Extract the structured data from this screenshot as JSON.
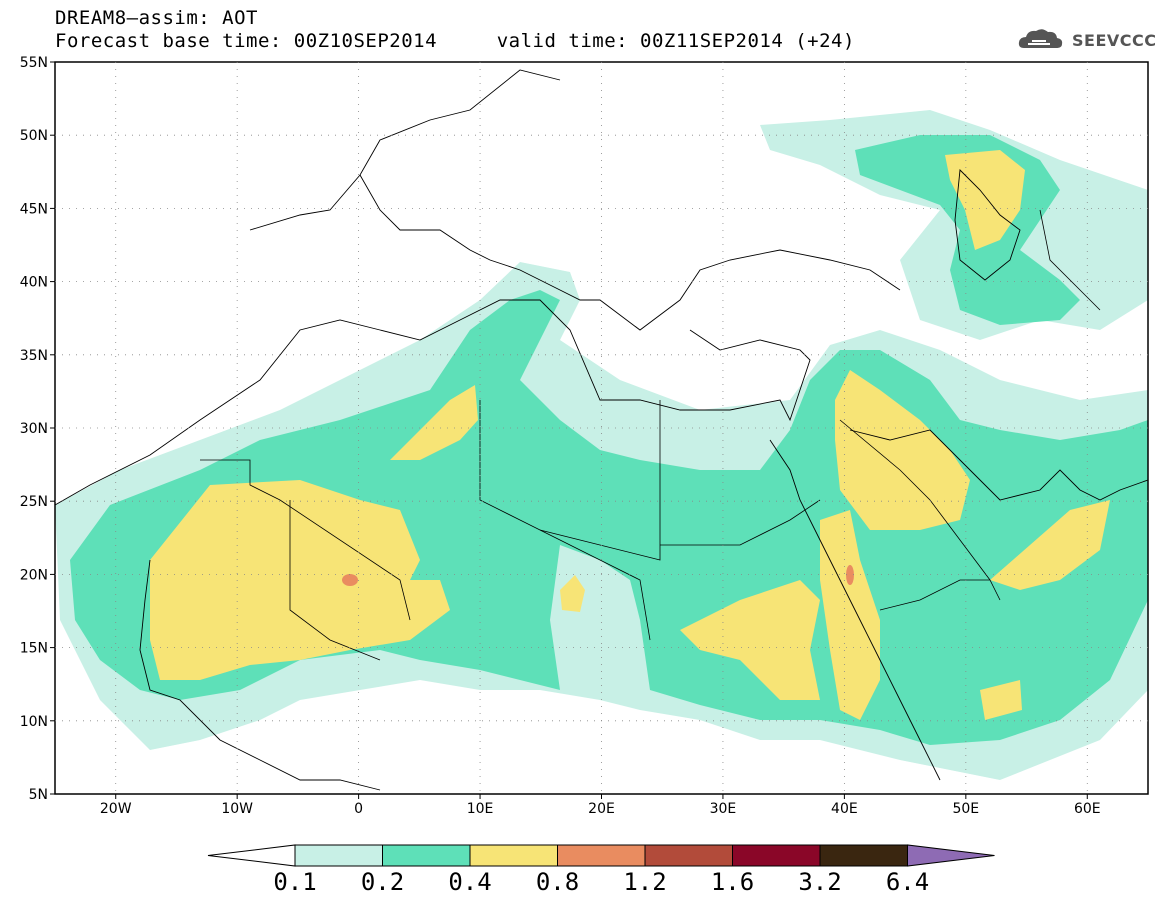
{
  "header": {
    "line1": "DREAM8–assim: AOT",
    "line2": "Forecast base time: 00Z10SEP2014     valid time: 00Z11SEP2014 (+24)"
  },
  "logo": {
    "text": "SEEVCCC",
    "icon": "cloud-icon"
  },
  "map": {
    "lat_labels": [
      "55N",
      "50N",
      "45N",
      "40N",
      "35N",
      "30N",
      "25N",
      "20N",
      "15N",
      "10N",
      "5N"
    ],
    "lon_labels": [
      "20W",
      "10W",
      "0",
      "10E",
      "20E",
      "30E",
      "40E",
      "50E",
      "60E"
    ]
  },
  "colorbar": {
    "labels": [
      "0.1",
      "0.2",
      "0.4",
      "0.8",
      "1.2",
      "1.6",
      "3.2",
      "6.4"
    ],
    "colors": [
      "#ffffff",
      "#c8f0e6",
      "#5ee0b8",
      "#f7e476",
      "#e98c60",
      "#b24b3a",
      "#8a0628",
      "#3a2610",
      "#8e6bb4"
    ]
  }
}
